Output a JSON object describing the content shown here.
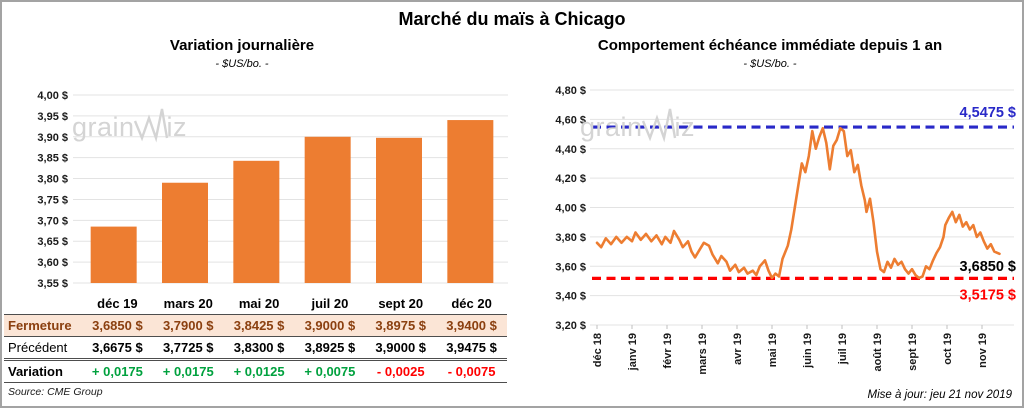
{
  "page": {
    "title": "Marché du maïs à Chicago",
    "source": "Source: CME Group",
    "updated": "Mise à jour: jeu 21 nov 2019",
    "watermark": {
      "part1": "grain",
      "part2": "iz"
    }
  },
  "colors": {
    "accent_orange": "#ED7D31",
    "grid": "#E3E3E3",
    "axis_text": "#1a1a1a",
    "fermeture_bg": "#FBE5D6",
    "fermeture_text": "#8B4010",
    "positive_green": "#00A13E",
    "negative_red": "#FF0000",
    "max_line_blue": "#2929C8",
    "min_line_red": "#FF0000",
    "watermark_gray": "#D4D4D4"
  },
  "chart_data": [
    {
      "type": "bar",
      "title": "Variation journalière",
      "subtitle": "- $US/bo. -",
      "categories": [
        "déc 19",
        "mars 20",
        "mai 20",
        "juil 20",
        "sept 20",
        "déc 20"
      ],
      "values": [
        3.685,
        3.79,
        3.8425,
        3.9,
        3.8975,
        3.94
      ],
      "ylim": [
        3.55,
        4.0
      ],
      "ytick_step": 0.05,
      "ytick_suffix": " $",
      "grid": true,
      "legend": "none",
      "bar_color": "#ED7D31"
    },
    {
      "type": "line",
      "title": "Comportement échéance immédiate depuis 1 an",
      "subtitle": "- $US/bo. -",
      "x_tick_labels": [
        "déc 18",
        "janv 19",
        "févr 19",
        "mars 19",
        "avr 19",
        "mai 19",
        "juin 19",
        "juil 19",
        "août 19",
        "sept 19",
        "oct 19",
        "nov 19"
      ],
      "ylim": [
        3.2,
        4.8
      ],
      "ytick_step": 0.2,
      "ytick_suffix": " $",
      "grid": true,
      "legend": "none",
      "line_color": "#ED7D31",
      "annotations": {
        "max": {
          "value": 4.5475,
          "label": "4,5475 $"
        },
        "min": {
          "value": 3.5175,
          "label": "3,5175 $"
        },
        "last": {
          "value": 3.685,
          "label": "3,6850 $"
        }
      },
      "points": [
        [
          0,
          3.76
        ],
        [
          0.12,
          3.73
        ],
        [
          0.25,
          3.79
        ],
        [
          0.4,
          3.75
        ],
        [
          0.55,
          3.8
        ],
        [
          0.7,
          3.76
        ],
        [
          0.85,
          3.8
        ],
        [
          1,
          3.77
        ],
        [
          1.1,
          3.83
        ],
        [
          1.25,
          3.78
        ],
        [
          1.4,
          3.82
        ],
        [
          1.55,
          3.77
        ],
        [
          1.7,
          3.81
        ],
        [
          1.85,
          3.75
        ],
        [
          1.95,
          3.8
        ],
        [
          2.1,
          3.76
        ],
        [
          2.2,
          3.84
        ],
        [
          2.35,
          3.78
        ],
        [
          2.45,
          3.73
        ],
        [
          2.6,
          3.77
        ],
        [
          2.7,
          3.7
        ],
        [
          2.8,
          3.66
        ],
        [
          2.95,
          3.72
        ],
        [
          3.05,
          3.76
        ],
        [
          3.2,
          3.74
        ],
        [
          3.3,
          3.68
        ],
        [
          3.45,
          3.62
        ],
        [
          3.55,
          3.67
        ],
        [
          3.7,
          3.63
        ],
        [
          3.8,
          3.57
        ],
        [
          3.95,
          3.61
        ],
        [
          4.05,
          3.56
        ],
        [
          4.2,
          3.59
        ],
        [
          4.3,
          3.55
        ],
        [
          4.45,
          3.57
        ],
        [
          4.55,
          3.54
        ],
        [
          4.65,
          3.6
        ],
        [
          4.8,
          3.64
        ],
        [
          4.9,
          3.57
        ],
        [
          5,
          3.52
        ],
        [
          5.1,
          3.55
        ],
        [
          5.2,
          3.53
        ],
        [
          5.3,
          3.65
        ],
        [
          5.45,
          3.74
        ],
        [
          5.55,
          3.85
        ],
        [
          5.65,
          4
        ],
        [
          5.75,
          4.15
        ],
        [
          5.85,
          4.3
        ],
        [
          5.95,
          4.24
        ],
        [
          6.05,
          4.35
        ],
        [
          6.15,
          4.52
        ],
        [
          6.25,
          4.4
        ],
        [
          6.35,
          4.48
        ],
        [
          6.45,
          4.54
        ],
        [
          6.55,
          4.44
        ],
        [
          6.65,
          4.26
        ],
        [
          6.75,
          4.42
        ],
        [
          6.85,
          4.46
        ],
        [
          6.95,
          4.54
        ],
        [
          7.05,
          4.52
        ],
        [
          7.15,
          4.35
        ],
        [
          7.25,
          4.39
        ],
        [
          7.35,
          4.24
        ],
        [
          7.45,
          4.29
        ],
        [
          7.55,
          4.15
        ],
        [
          7.65,
          4.05
        ],
        [
          7.7,
          3.97
        ],
        [
          7.8,
          4.06
        ],
        [
          7.9,
          3.9
        ],
        [
          8,
          3.7
        ],
        [
          8.1,
          3.58
        ],
        [
          8.2,
          3.56
        ],
        [
          8.3,
          3.63
        ],
        [
          8.4,
          3.59
        ],
        [
          8.5,
          3.65
        ],
        [
          8.6,
          3.61
        ],
        [
          8.7,
          3.63
        ],
        [
          8.8,
          3.58
        ],
        [
          8.9,
          3.55
        ],
        [
          9,
          3.58
        ],
        [
          9.1,
          3.54
        ],
        [
          9.2,
          3.52
        ],
        [
          9.3,
          3.53
        ],
        [
          9.4,
          3.6
        ],
        [
          9.5,
          3.58
        ],
        [
          9.6,
          3.64
        ],
        [
          9.7,
          3.69
        ],
        [
          9.8,
          3.73
        ],
        [
          9.9,
          3.8
        ],
        [
          9.95,
          3.88
        ],
        [
          10.05,
          3.93
        ],
        [
          10.15,
          3.97
        ],
        [
          10.25,
          3.9
        ],
        [
          10.35,
          3.95
        ],
        [
          10.45,
          3.87
        ],
        [
          10.55,
          3.9
        ],
        [
          10.65,
          3.85
        ],
        [
          10.75,
          3.88
        ],
        [
          10.85,
          3.8
        ],
        [
          10.95,
          3.83
        ],
        [
          11.05,
          3.77
        ],
        [
          11.15,
          3.72
        ],
        [
          11.25,
          3.75
        ],
        [
          11.35,
          3.7
        ],
        [
          11.5,
          3.685
        ]
      ]
    }
  ],
  "table": {
    "columns": [
      "déc 19",
      "mars 20",
      "mai 20",
      "juil 20",
      "sept 20",
      "déc 20"
    ],
    "rows": [
      {
        "label": "Fermeture",
        "style": "fermeture",
        "values": [
          "3,6850 $",
          "3,7900 $",
          "3,8425 $",
          "3,9000 $",
          "3,8975 $",
          "3,9400 $"
        ]
      },
      {
        "label": "Précédent",
        "style": "precedent",
        "values": [
          "3,6675 $",
          "3,7725 $",
          "3,8300 $",
          "3,8925 $",
          "3,9000 $",
          "3,9475 $"
        ]
      },
      {
        "label": "Variation",
        "style": "variation",
        "values": [
          "+ 0,0175",
          "+ 0,0175",
          "+ 0,0125",
          "+ 0,0075",
          "- 0,0025",
          "- 0,0075"
        ],
        "signs": [
          "pos",
          "pos",
          "pos",
          "pos",
          "neg",
          "neg"
        ]
      }
    ]
  }
}
